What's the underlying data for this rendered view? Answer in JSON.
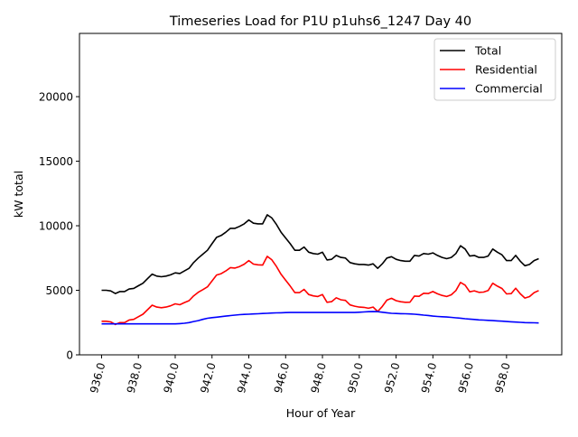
{
  "chart_data": {
    "type": "line",
    "title": "Timeseries Load for P1U p1uhs6_1247  Day 40",
    "xlabel": "Hour of Year",
    "ylabel": "kW total",
    "xlim": [
      934.8,
      961.0
    ],
    "ylim": [
      0,
      24900
    ],
    "x_start": 936.0,
    "x_step": 0.25,
    "xticks": [
      936,
      938,
      940,
      942,
      944,
      946,
      948,
      950,
      952,
      954,
      956,
      958
    ],
    "xtick_labels": [
      "936.0",
      "938.0",
      "940.0",
      "942.0",
      "944.0",
      "946.0",
      "948.0",
      "950.0",
      "952.0",
      "954.0",
      "956.0",
      "958.0"
    ],
    "yticks": [
      0,
      5000,
      10000,
      15000,
      20000
    ],
    "ytick_labels": [
      "0",
      "5000",
      "10000",
      "15000",
      "20000"
    ],
    "grid": false,
    "legend_position": "top-right",
    "series": [
      {
        "name": "Total",
        "color": "#000000",
        "values": [
          5000,
          5000,
          4950,
          4750,
          4900,
          4900,
          5100,
          5150,
          5350,
          5550,
          5900,
          6250,
          6100,
          6050,
          6100,
          6200,
          6350,
          6300,
          6500,
          6700,
          7150,
          7500,
          7800,
          8100,
          8600,
          9100,
          9250,
          9500,
          9800,
          9800,
          9950,
          10150,
          10450,
          10200,
          10150,
          10150,
          10850,
          10600,
          10100,
          9500,
          9050,
          8600,
          8100,
          8100,
          8350,
          7950,
          7850,
          7800,
          7950,
          7350,
          7400,
          7700,
          7550,
          7500,
          7150,
          7050,
          7000,
          7000,
          6950,
          7050,
          6700,
          7050,
          7500,
          7600,
          7400,
          7300,
          7250,
          7250,
          7700,
          7650,
          7850,
          7800,
          7900,
          7700,
          7550,
          7450,
          7550,
          7850,
          8450,
          8200,
          7650,
          7700,
          7550,
          7550,
          7650,
          8200,
          7950,
          7750,
          7300,
          7300,
          7700,
          7250,
          6900,
          7000,
          7300,
          7450
        ]
      },
      {
        "name": "Residential",
        "color": "#ff0000",
        "values": [
          2600,
          2600,
          2550,
          2350,
          2500,
          2500,
          2700,
          2750,
          2950,
          3150,
          3500,
          3850,
          3700,
          3650,
          3700,
          3800,
          3950,
          3880,
          4050,
          4200,
          4570,
          4850,
          5050,
          5270,
          5720,
          6180,
          6290,
          6500,
          6760,
          6720,
          6840,
          7020,
          7300,
          7030,
          6970,
          6950,
          7630,
          7360,
          6850,
          6240,
          5780,
          5320,
          4820,
          4820,
          5070,
          4670,
          4570,
          4520,
          4670,
          4070,
          4120,
          4420,
          4270,
          4220,
          3870,
          3770,
          3700,
          3680,
          3610,
          3700,
          3360,
          3750,
          4240,
          4380,
          4200,
          4110,
          4070,
          4080,
          4550,
          4530,
          4770,
          4750,
          4900,
          4730,
          4600,
          4520,
          4650,
          4980,
          5610,
          5400,
          4880,
          4960,
          4840,
          4860,
          4980,
          5550,
          5320,
          5140,
          4720,
          4740,
          5160,
          4730,
          4400,
          4510,
          4820,
          4980
        ]
      },
      {
        "name": "Commercial",
        "color": "#0000ff",
        "values": [
          2400,
          2400,
          2400,
          2400,
          2400,
          2400,
          2400,
          2400,
          2400,
          2400,
          2400,
          2400,
          2400,
          2400,
          2400,
          2400,
          2400,
          2420,
          2450,
          2500,
          2580,
          2650,
          2750,
          2830,
          2880,
          2920,
          2960,
          3000,
          3040,
          3080,
          3110,
          3130,
          3150,
          3170,
          3180,
          3200,
          3220,
          3240,
          3250,
          3260,
          3270,
          3280,
          3280,
          3280,
          3280,
          3280,
          3280,
          3280,
          3280,
          3280,
          3280,
          3280,
          3280,
          3280,
          3280,
          3280,
          3300,
          3320,
          3340,
          3350,
          3340,
          3300,
          3260,
          3220,
          3200,
          3190,
          3180,
          3170,
          3150,
          3120,
          3080,
          3050,
          3000,
          2970,
          2950,
          2930,
          2900,
          2870,
          2840,
          2800,
          2770,
          2740,
          2710,
          2690,
          2670,
          2650,
          2630,
          2610,
          2580,
          2560,
          2540,
          2520,
          2500,
          2490,
          2480,
          2470
        ]
      }
    ]
  }
}
